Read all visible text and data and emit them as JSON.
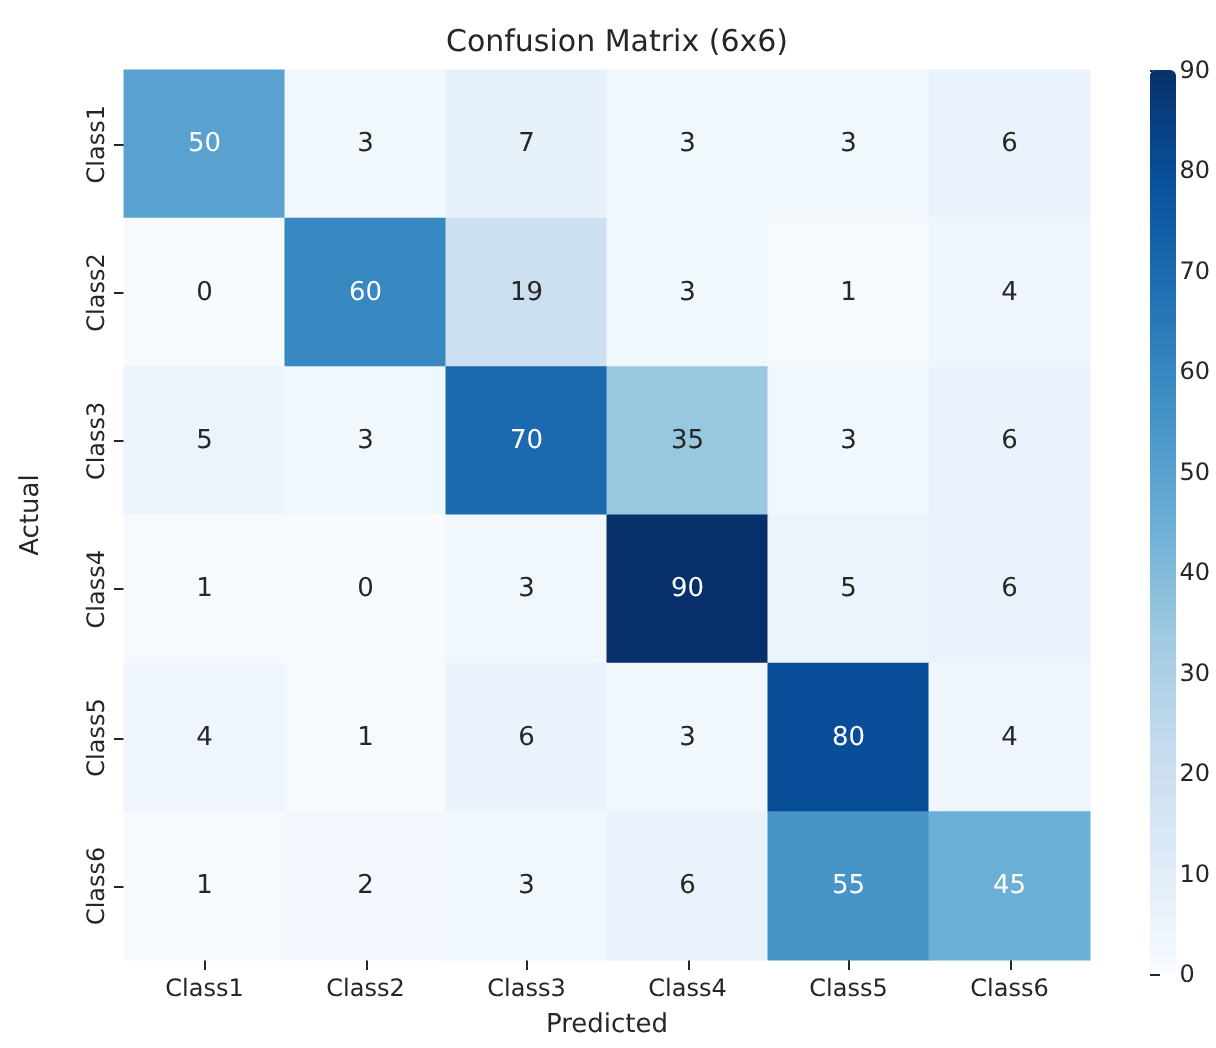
{
  "chart_data": {
    "type": "heatmap",
    "title": "Confusion Matrix (6x6)",
    "xlabel": "Predicted",
    "ylabel": "Actual",
    "categories": [
      "Class1",
      "Class2",
      "Class3",
      "Class4",
      "Class5",
      "Class6"
    ],
    "y_categories": [
      "Class1",
      "Class2",
      "Class3",
      "Class4",
      "Class5",
      "Class6"
    ],
    "cells": [
      [
        50,
        3,
        7,
        3,
        3,
        6
      ],
      [
        0,
        60,
        19,
        3,
        1,
        4
      ],
      [
        5,
        3,
        70,
        35,
        3,
        6
      ],
      [
        1,
        0,
        3,
        90,
        5,
        6
      ],
      [
        4,
        1,
        6,
        3,
        80,
        4
      ],
      [
        1,
        2,
        3,
        6,
        55,
        45
      ]
    ],
    "clim": [
      0,
      90
    ],
    "cticks": [
      0,
      10,
      20,
      30,
      40,
      50,
      60,
      70,
      80,
      90
    ],
    "data_labels": true
  }
}
